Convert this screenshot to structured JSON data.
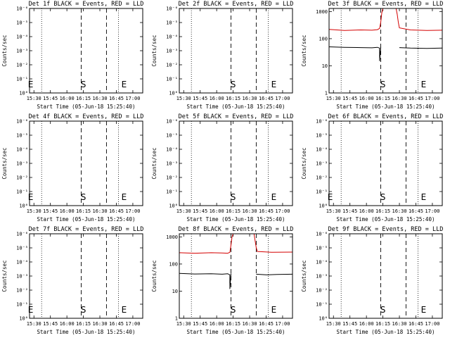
{
  "chart_data": [
    {
      "type": "line",
      "title": "Det 1f BLACK = Events, RED = LLD",
      "ylabel": "Counts/sec",
      "xlabel": "Start Time (05-Jun-18 15:25:40)",
      "scale": "log",
      "xlim": [
        "15:26",
        "17:09"
      ],
      "xticks": [
        "15:30",
        "15:45",
        "16:00",
        "16:15",
        "16:30",
        "16:45",
        "17:00"
      ],
      "yticks": [
        "10⁰",
        "10⁻¹",
        "10⁻²",
        "10⁻³",
        "10⁻⁴",
        "10⁻⁵",
        "10⁻⁶"
      ],
      "ylim": [
        1e-06,
        1
      ],
      "markers": [
        {
          "label": "E",
          "time": "15:27"
        },
        {
          "label": "S",
          "time": "16:15"
        },
        {
          "label": "E",
          "time": "16:52"
        }
      ],
      "dashed_lines": [
        "16:13",
        "16:36"
      ],
      "dotted_lines": [
        "15:37",
        "16:47"
      ],
      "series": []
    },
    {
      "type": "line",
      "title": "Det 2f BLACK = Events, RED = LLD",
      "ylabel": "Counts/sec",
      "xlabel": "Start Time (05-Jun-18 15:25:40)",
      "scale": "log",
      "xlim": [
        "15:26",
        "17:09"
      ],
      "xticks": [
        "15:30",
        "15:45",
        "16:00",
        "16:15",
        "16:30",
        "16:45",
        "17:00"
      ],
      "yticks": [
        "10⁰",
        "10⁻¹",
        "10⁻²",
        "10⁻³",
        "10⁻⁴",
        "10⁻⁵",
        "10⁻⁶"
      ],
      "ylim": [
        1e-06,
        1
      ],
      "markers": [
        {
          "label": "S",
          "time": "16:15"
        },
        {
          "label": "E",
          "time": "16:52"
        }
      ],
      "dashed_lines": [
        "16:13",
        "16:36"
      ],
      "dotted_lines": [
        "15:37",
        "16:47"
      ],
      "series": []
    },
    {
      "type": "line",
      "title": "Det 3f BLACK = Events, RED = LLD",
      "ylabel": "Counts/sec",
      "xlabel": "Start Time (05-Jun-18 15:25:40)",
      "scale": "log",
      "xlim": [
        "15:26",
        "17:09"
      ],
      "xticks": [
        "15:30",
        "15:45",
        "16:00",
        "16:15",
        "16:30",
        "16:45",
        "17:00"
      ],
      "yticks": [
        "1",
        "10",
        "100",
        "1000"
      ],
      "ylim": [
        1,
        1300
      ],
      "markers": [
        {
          "label": "S",
          "time": "16:15"
        },
        {
          "label": "E",
          "time": "16:52"
        }
      ],
      "dashed_lines": [
        "16:13",
        "16:36"
      ],
      "dotted_lines": [
        "15:37",
        "16:47"
      ],
      "series": [
        {
          "color": "#d40000",
          "x": [
            "15:26",
            "15:40",
            "15:55",
            "16:05",
            "16:10",
            "16:12",
            "16:13",
            "16:14",
            "16:15",
            "16:20",
            "16:25",
            "16:27",
            "16:28",
            "16:29",
            "16:30",
            "16:40",
            "16:55",
            "17:09"
          ],
          "y": [
            220,
            200,
            210,
            205,
            215,
            240,
            400,
            900,
            1300,
            1300,
            1300,
            1300,
            800,
            400,
            250,
            210,
            200,
            205
          ]
        },
        {
          "color": "#000000",
          "x": [
            "15:26",
            "15:40",
            "15:55",
            "16:05",
            "16:10",
            "16:12",
            "16:12",
            "16:13",
            "16:29",
            "16:30",
            "16:40",
            "16:55",
            "17:09"
          ],
          "y": [
            50,
            48,
            47,
            46,
            48,
            45,
            15,
            50,
            null,
            47,
            45,
            44,
            45
          ]
        }
      ]
    },
    {
      "type": "line",
      "title": "Det 4f BLACK = Events, RED = LLD",
      "ylabel": "Counts/sec",
      "xlabel": "Start Time (05-Jun-18 15:25:40)",
      "scale": "log",
      "xlim": [
        "15:26",
        "17:09"
      ],
      "xticks": [
        "15:30",
        "15:45",
        "16:00",
        "16:15",
        "16:30",
        "16:45",
        "17:00"
      ],
      "yticks": [
        "10⁰",
        "10⁻¹",
        "10⁻²",
        "10⁻³",
        "10⁻⁴",
        "10⁻⁵",
        "10⁻⁶"
      ],
      "ylim": [
        1e-06,
        1
      ],
      "markers": [
        {
          "label": "E",
          "time": "15:27"
        },
        {
          "label": "S",
          "time": "16:15"
        },
        {
          "label": "E",
          "time": "16:52"
        }
      ],
      "dashed_lines": [
        "16:13",
        "16:36"
      ],
      "dotted_lines": [
        "15:37",
        "16:47"
      ],
      "series": []
    },
    {
      "type": "line",
      "title": "Det 5f BLACK = Events, RED = LLD",
      "ylabel": "Counts/sec",
      "xlabel": "Start Time (05-Jun-18 15:25:40)",
      "scale": "log",
      "xlim": [
        "15:26",
        "17:09"
      ],
      "xticks": [
        "15:30",
        "15:45",
        "16:00",
        "16:15",
        "16:30",
        "16:45",
        "17:00"
      ],
      "yticks": [
        "10⁰",
        "10⁻¹",
        "10⁻²",
        "10⁻³",
        "10⁻⁴",
        "10⁻⁵",
        "10⁻⁶"
      ],
      "ylim": [
        1e-06,
        1
      ],
      "markers": [
        {
          "label": "S",
          "time": "16:15"
        },
        {
          "label": "E",
          "time": "16:52"
        }
      ],
      "dashed_lines": [
        "16:13",
        "16:36"
      ],
      "dotted_lines": [
        "15:37",
        "16:47"
      ],
      "series": []
    },
    {
      "type": "line",
      "title": "Det 6f BLACK = Events, RED = LLD",
      "ylabel": "Counts/sec",
      "xlabel": "Start Time (05-Jun-18 15:25:40)",
      "scale": "log",
      "xlim": [
        "15:26",
        "17:09"
      ],
      "xticks": [
        "15:30",
        "15:45",
        "16:00",
        "16:15",
        "16:30",
        "16:45",
        "17:00"
      ],
      "yticks": [
        "10⁰",
        "10⁻¹",
        "10⁻²",
        "10⁻³",
        "10⁻⁴",
        "10⁻⁵",
        "10⁻⁶"
      ],
      "ylim": [
        1e-06,
        1
      ],
      "markers": [
        {
          "label": "E",
          "time": "15:27"
        },
        {
          "label": "S",
          "time": "16:15"
        },
        {
          "label": "E",
          "time": "16:52"
        }
      ],
      "dashed_lines": [
        "16:13",
        "16:36"
      ],
      "dotted_lines": [
        "15:37",
        "16:47"
      ],
      "series": []
    },
    {
      "type": "line",
      "title": "Det 7f BLACK = Events, RED = LLD",
      "ylabel": "Counts/sec",
      "xlabel": "Start Time (05-Jun-18 15:25:40)",
      "scale": "log",
      "xlim": [
        "15:26",
        "17:09"
      ],
      "xticks": [
        "15:30",
        "15:45",
        "16:00",
        "16:15",
        "16:30",
        "16:45",
        "17:00"
      ],
      "yticks": [
        "10⁰",
        "10⁻¹",
        "10⁻²",
        "10⁻³",
        "10⁻⁴",
        "10⁻⁵",
        "10⁻⁶"
      ],
      "ylim": [
        1e-06,
        1
      ],
      "markers": [
        {
          "label": "E",
          "time": "15:27"
        },
        {
          "label": "S",
          "time": "16:15"
        },
        {
          "label": "E",
          "time": "16:52"
        }
      ],
      "dashed_lines": [
        "16:13",
        "16:36"
      ],
      "dotted_lines": [
        "15:37",
        "16:47"
      ],
      "series": []
    },
    {
      "type": "line",
      "title": "Det 8f BLACK = Events, RED = LLD",
      "ylabel": "Counts/sec",
      "xlabel": "Start Time (05-Jun-18 15:25:40)",
      "scale": "log",
      "xlim": [
        "15:26",
        "17:09"
      ],
      "xticks": [
        "15:30",
        "15:45",
        "16:00",
        "16:15",
        "16:30",
        "16:45",
        "17:00"
      ],
      "yticks": [
        "1",
        "10",
        "100",
        "1000"
      ],
      "ylim": [
        1,
        1300
      ],
      "markers": [
        {
          "label": "S",
          "time": "16:15"
        },
        {
          "label": "E",
          "time": "16:52"
        }
      ],
      "dashed_lines": [
        "16:13",
        "16:36"
      ],
      "dotted_lines": [
        "15:37",
        "16:47"
      ],
      "series": [
        {
          "color": "#d40000",
          "x": [
            "15:26",
            "15:40",
            "15:55",
            "16:05",
            "16:10",
            "16:12",
            "16:13",
            "16:14",
            "16:15",
            "16:20",
            "16:25",
            "16:30",
            "16:34",
            "16:35",
            "16:36",
            "16:37",
            "16:50",
            "17:09"
          ],
          "y": [
            260,
            250,
            260,
            255,
            250,
            270,
            500,
            1000,
            1300,
            1300,
            1300,
            1300,
            1300,
            700,
            400,
            290,
            270,
            275
          ]
        },
        {
          "color": "#000000",
          "x": [
            "15:26",
            "15:40",
            "15:55",
            "16:05",
            "16:10",
            "16:12",
            "16:12",
            "16:13",
            "16:35",
            "16:36",
            "16:45",
            "16:55",
            "17:09"
          ],
          "y": [
            45,
            43,
            44,
            42,
            44,
            40,
            12,
            45,
            null,
            42,
            40,
            41,
            42
          ]
        }
      ]
    },
    {
      "type": "line",
      "title": "Det 9f BLACK = Events, RED = LLD",
      "ylabel": "Counts/sec",
      "xlabel": "Start Time (05-Jun-18 15:25:40)",
      "scale": "log",
      "xlim": [
        "15:26",
        "17:09"
      ],
      "xticks": [
        "15:30",
        "15:45",
        "16:00",
        "16:15",
        "16:30",
        "16:45",
        "17:00"
      ],
      "yticks": [
        "10⁰",
        "10⁻¹",
        "10⁻²",
        "10⁻³",
        "10⁻⁴",
        "10⁻⁵",
        "10⁻⁶"
      ],
      "ylim": [
        1e-06,
        1
      ],
      "markers": [
        {
          "label": "S",
          "time": "16:15"
        },
        {
          "label": "E",
          "time": "16:52"
        }
      ],
      "dashed_lines": [
        "16:13",
        "16:36"
      ],
      "dotted_lines": [
        "15:37",
        "16:47"
      ],
      "series": []
    }
  ]
}
